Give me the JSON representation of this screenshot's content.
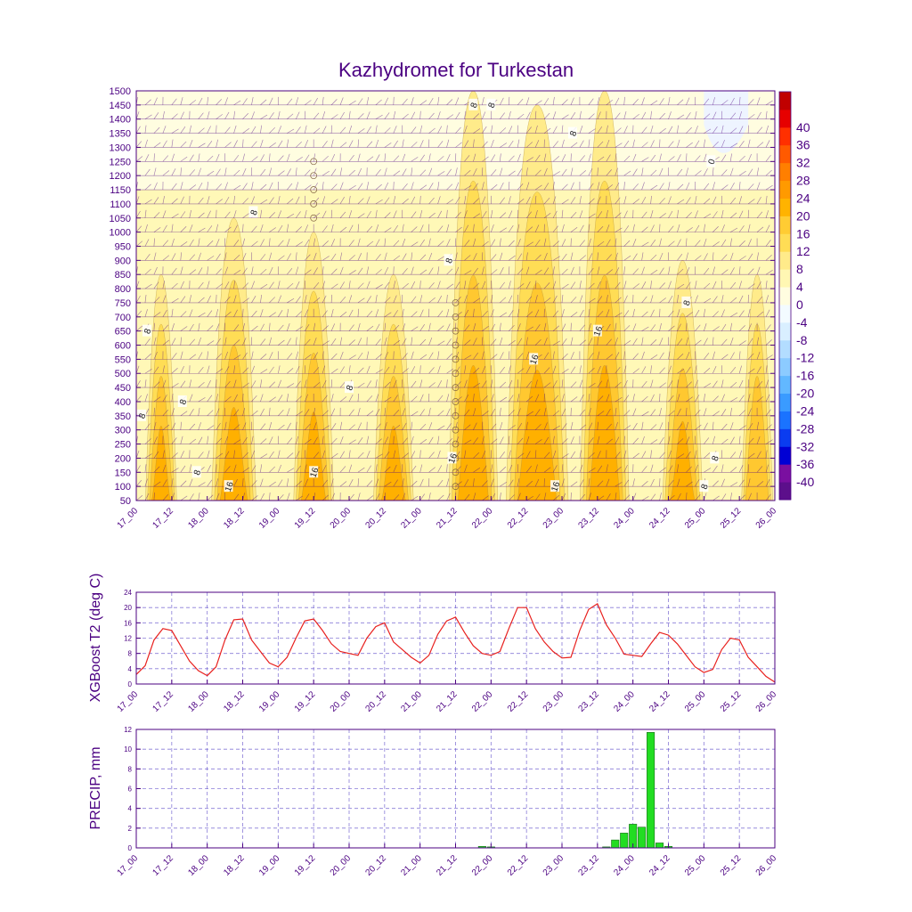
{
  "title": "Kazhydromet for Turkestan",
  "colors": {
    "text": "#4b0082",
    "t2_line": "#e8201e",
    "precip_bar": "#22dd22",
    "contour_positive": [
      "#fffde0",
      "#fff7b3",
      "#ffeb8a",
      "#ffdd55",
      "#ffc830",
      "#ffb000"
    ],
    "colorbar_colors": [
      "#5c0f8b",
      "#7a0fa0",
      "#0000d4",
      "#0a3cf0",
      "#1a73ff",
      "#3a9bff",
      "#62b8ff",
      "#8ccbff",
      "#b3ddff",
      "#d9efff",
      "#f3fbff",
      "#fffde0",
      "#fff7b3",
      "#ffeb8a",
      "#ffdd55",
      "#ffcc33",
      "#ffb300",
      "#ff9a00",
      "#ff7f00",
      "#ff5a00",
      "#ff3000",
      "#e60000",
      "#c00000"
    ]
  },
  "colorbar_labels": [
    "40",
    "36",
    "32",
    "28",
    "24",
    "20",
    "16",
    "12",
    "8",
    "4",
    "0",
    "-4",
    "-8",
    "-12",
    "-16",
    "-20",
    "-24",
    "-28",
    "-32",
    "-36",
    "-40"
  ],
  "x_tick_labels": [
    "17_00",
    "17_12",
    "18_00",
    "18_12",
    "19_00",
    "19_12",
    "20_00",
    "20_12",
    "21_00",
    "21_12",
    "22_00",
    "22_12",
    "23_00",
    "23_12",
    "24_00",
    "24_12",
    "25_00",
    "25_12",
    "26_00"
  ],
  "top_panel": {
    "y_tick_labels": [
      "1500",
      "1450",
      "1400",
      "1350",
      "1300",
      "1250",
      "1200",
      "1150",
      "1100",
      "1050",
      "1000",
      "950",
      "900",
      "850",
      "800",
      "750",
      "700",
      "650",
      "600",
      "550",
      "500",
      "450",
      "400",
      "350",
      "300",
      "250",
      "200",
      "150",
      "100",
      "50"
    ],
    "contour_labels": [
      {
        "text": "8",
        "t": 0.3,
        "p": 650
      },
      {
        "text": "8",
        "t": 0.15,
        "p": 350
      },
      {
        "text": "8",
        "t": 1.3,
        "p": 400
      },
      {
        "text": "8",
        "t": 1.7,
        "p": 150
      },
      {
        "text": "16",
        "t": 2.6,
        "p": 100
      },
      {
        "text": "8",
        "t": 3.3,
        "p": 1070
      },
      {
        "text": "16",
        "t": 5.0,
        "p": 150
      },
      {
        "text": "8",
        "t": 6.0,
        "p": 450
      },
      {
        "text": "8",
        "t": 8.8,
        "p": 900
      },
      {
        "text": "16",
        "t": 8.9,
        "p": 200
      },
      {
        "text": "8",
        "t": 9.5,
        "p": 1450
      },
      {
        "text": "8",
        "t": 10.0,
        "p": 1450
      },
      {
        "text": "16",
        "t": 11.2,
        "p": 550
      },
      {
        "text": "16",
        "t": 11.8,
        "p": 100
      },
      {
        "text": "8",
        "t": 12.3,
        "p": 1350
      },
      {
        "text": "16",
        "t": 13.0,
        "p": 650
      },
      {
        "text": "8",
        "t": 15.5,
        "p": 750
      },
      {
        "text": "0",
        "t": 16.2,
        "p": 1250
      },
      {
        "text": "8",
        "t": 16.0,
        "p": 100
      },
      {
        "text": "8",
        "t": 16.3,
        "p": 200
      }
    ]
  },
  "t2_panel": {
    "ylabel": "XGBoost T2 (deg C)",
    "y_tick_labels": [
      "0",
      "4",
      "8",
      "12",
      "16",
      "20",
      "24"
    ]
  },
  "precip_panel": {
    "ylabel": "PRECIP, mm",
    "y_tick_labels": [
      "0",
      "2",
      "4",
      "6",
      "8",
      "10",
      "12"
    ]
  },
  "chart_data": [
    {
      "type": "heatmap",
      "title": "Kazhydromet for Turkestan",
      "x_axis": "time (day_hour), 3-hourly",
      "y_axis": "height",
      "ylim": [
        50,
        1500
      ],
      "x": [
        "17_00",
        "17_12",
        "18_00",
        "18_12",
        "19_00",
        "19_12",
        "20_00",
        "20_12",
        "21_00",
        "21_12",
        "22_00",
        "22_12",
        "23_00",
        "23_12",
        "24_00",
        "24_12",
        "25_00",
        "25_12",
        "26_00"
      ],
      "colorbar_range": [
        -40,
        40
      ],
      "temperature_bands": [
        {
          "center": 0.7,
          "width": 0.35,
          "peak": 14,
          "top": 850
        },
        {
          "center": 2.75,
          "width": 0.5,
          "peak": 15,
          "top": 1050
        },
        {
          "center": 5.0,
          "width": 0.45,
          "peak": 15,
          "top": 1000
        },
        {
          "center": 7.25,
          "width": 0.45,
          "peak": 14,
          "top": 850
        },
        {
          "center": 9.5,
          "width": 0.55,
          "peak": 18,
          "top": 1500
        },
        {
          "center": 11.3,
          "width": 0.7,
          "peak": 21,
          "top": 1450
        },
        {
          "center": 13.2,
          "width": 0.55,
          "peak": 20,
          "top": 1500
        },
        {
          "center": 15.4,
          "width": 0.45,
          "peak": 14,
          "top": 900
        },
        {
          "center": 17.5,
          "width": 0.35,
          "peak": 13,
          "top": 850
        }
      ]
    },
    {
      "type": "line",
      "ylabel": "XGBoost T2 (deg C)",
      "ylim": [
        0,
        24
      ],
      "x_step": "3h",
      "x_start": "17_00",
      "values": [
        2.5,
        4.8,
        11.5,
        14.5,
        14.0,
        10.0,
        6.0,
        3.5,
        2.2,
        4.5,
        11.5,
        16.8,
        17.0,
        11.5,
        8.5,
        5.5,
        4.5,
        7.0,
        12.0,
        16.5,
        17.0,
        14.0,
        10.5,
        8.5,
        8.0,
        7.5,
        12.0,
        15.0,
        16.0,
        11.0,
        9.0,
        7.0,
        5.5,
        7.5,
        13.0,
        16.5,
        17.5,
        13.5,
        10.0,
        8.0,
        7.5,
        8.5,
        14.5,
        20.0,
        20.0,
        14.5,
        11.0,
        8.5,
        6.8,
        7.0,
        14.0,
        19.5,
        21.0,
        15.5,
        12.0,
        7.8,
        7.5,
        7.2,
        10.5,
        13.5,
        12.8,
        10.5,
        7.5,
        4.5,
        3.0,
        3.8,
        9.0,
        12.0,
        11.5,
        7.0,
        4.5,
        2.0,
        0.5
      ]
    },
    {
      "type": "bar",
      "ylabel": "PRECIP, mm",
      "ylim": [
        0,
        12
      ],
      "x_step": "3h",
      "x_start": "17_00",
      "values": [
        0,
        0,
        0,
        0,
        0,
        0,
        0,
        0,
        0,
        0,
        0,
        0,
        0,
        0,
        0,
        0,
        0,
        0,
        0,
        0,
        0,
        0,
        0,
        0,
        0,
        0,
        0,
        0,
        0,
        0,
        0,
        0,
        0,
        0,
        0,
        0,
        0,
        0,
        0,
        0.15,
        0.1,
        0,
        0,
        0,
        0,
        0,
        0,
        0,
        0,
        0,
        0,
        0,
        0,
        0.1,
        0.8,
        1.5,
        2.4,
        2.1,
        11.7,
        0.5,
        0.15,
        0,
        0,
        0,
        0,
        0,
        0,
        0,
        0,
        0,
        0,
        0
      ]
    }
  ]
}
